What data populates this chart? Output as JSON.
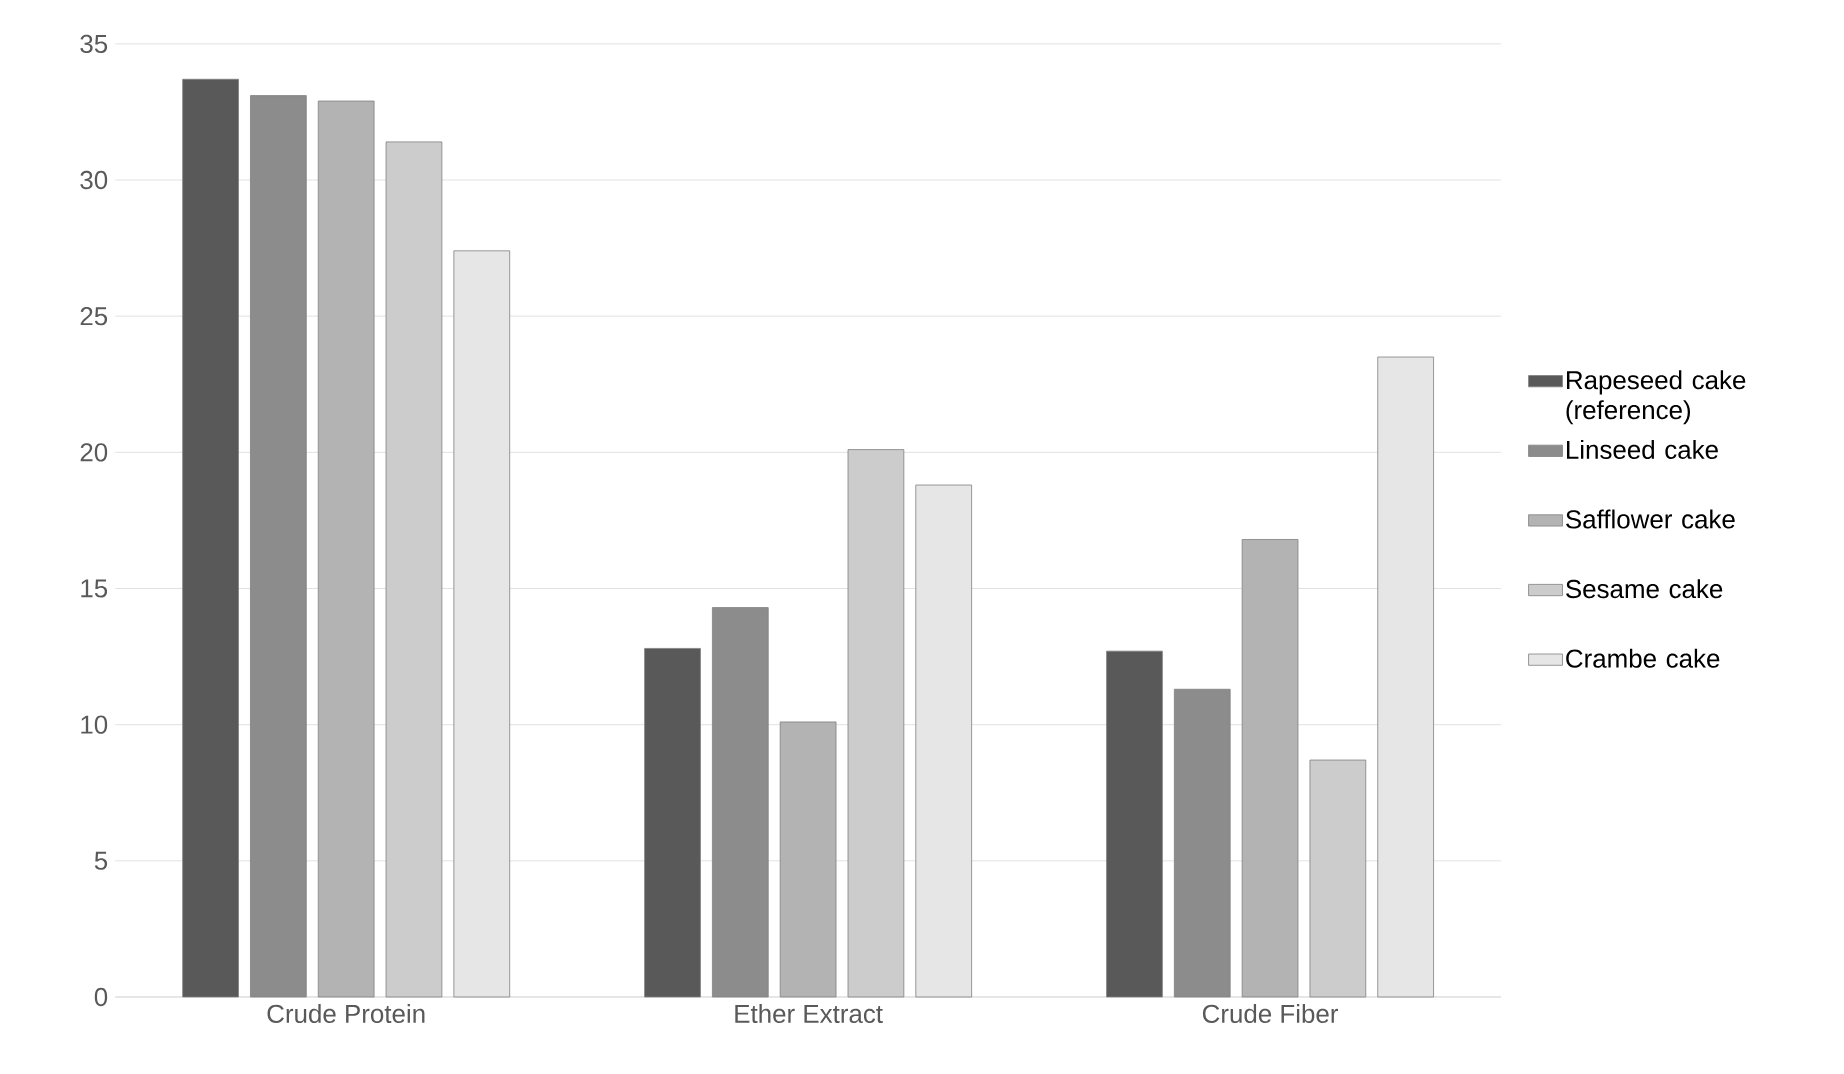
{
  "chart_data": {
    "type": "bar",
    "categories": [
      "Crude Protein",
      "Ether Extract",
      "Crude Fiber"
    ],
    "series": [
      {
        "name": "Rapeseed cake (reference)",
        "color": "#595959",
        "values": [
          33.7,
          12.8,
          12.7
        ]
      },
      {
        "name": "Linseed cake",
        "color": "#8c8c8c",
        "values": [
          33.1,
          14.3,
          11.3
        ]
      },
      {
        "name": "Safflower cake",
        "color": "#b3b3b3",
        "values": [
          32.9,
          10.1,
          16.8
        ]
      },
      {
        "name": "Sesame cake",
        "color": "#cccccc",
        "values": [
          31.4,
          20.1,
          8.7
        ]
      },
      {
        "name": "Crambe cake",
        "color": "#e6e6e6",
        "values": [
          27.4,
          18.8,
          23.5
        ]
      }
    ],
    "ylim": [
      0,
      35
    ],
    "yticks": [
      0,
      5,
      10,
      15,
      20,
      25,
      30,
      35
    ],
    "grid": "y",
    "legend": "right"
  }
}
